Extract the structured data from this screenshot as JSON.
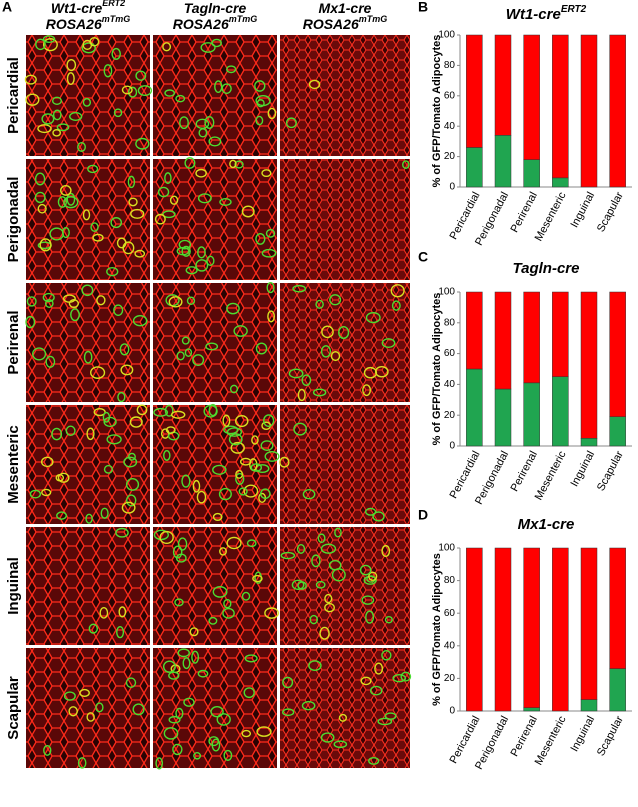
{
  "panel_a": {
    "letter": "A",
    "columns": [
      {
        "line1": "Wt1-cre",
        "line1_sup": "ERT2",
        "line2": "ROSA26",
        "line2_sup": "mTmG"
      },
      {
        "line1": "Tagln-cre",
        "line2": "ROSA26",
        "line2_sup": "mTmG"
      },
      {
        "line1": "Mx1-cre",
        "line2": "ROSA26",
        "line2_sup": "mTmG"
      }
    ],
    "rows": [
      "Pericardial",
      "Perigonadal",
      "Perirenal",
      "Mesenteric",
      "Inguinal",
      "Scapular"
    ]
  },
  "chart_data": [
    {
      "type": "bar",
      "stacked": true,
      "letter": "B",
      "title": "Wt1-cre",
      "title_sup": "ERT2",
      "y_label": "% of GFP/Tomato Adipocytes",
      "categories": [
        "Pericardial",
        "Perigonadal",
        "Perirenal",
        "Mesenteric",
        "Inguinal",
        "Scapular"
      ],
      "series": [
        {
          "color": "#20a550",
          "values": [
            26,
            34,
            18,
            6,
            0,
            0
          ]
        },
        {
          "color": "#ff0000",
          "values": [
            74,
            66,
            82,
            94,
            100,
            100
          ]
        }
      ],
      "ylim": [
        0,
        100
      ],
      "yticks": [
        0,
        20,
        40,
        60,
        80,
        100
      ]
    },
    {
      "type": "bar",
      "stacked": true,
      "letter": "C",
      "title": "Tagln-cre",
      "y_label": "% of GFP/Tomato Adipocytes",
      "categories": [
        "Pericardial",
        "Perigonadal",
        "Perirenal",
        "Mesenteric",
        "Inguinal",
        "Scapular"
      ],
      "series": [
        {
          "color": "#20a550",
          "values": [
            50,
            37,
            41,
            45,
            5,
            19
          ]
        },
        {
          "color": "#ff0000",
          "values": [
            50,
            63,
            59,
            55,
            95,
            81
          ]
        }
      ],
      "ylim": [
        0,
        100
      ],
      "yticks": [
        0,
        20,
        40,
        60,
        80,
        100
      ]
    },
    {
      "type": "bar",
      "stacked": true,
      "letter": "D",
      "title": "Mx1-cre",
      "y_label": "% of GFP/Tomato Adipocytes",
      "categories": [
        "Pericardial",
        "Perigonadal",
        "Perirenal",
        "Mesenteric",
        "Inguinal",
        "Scapular"
      ],
      "series": [
        {
          "color": "#20a550",
          "values": [
            0,
            0,
            2,
            0,
            7,
            26
          ]
        },
        {
          "color": "#ff0000",
          "values": [
            100,
            100,
            98,
            100,
            93,
            74
          ]
        }
      ],
      "ylim": [
        0,
        100
      ],
      "yticks": [
        0,
        20,
        40,
        60,
        80,
        100
      ]
    }
  ]
}
